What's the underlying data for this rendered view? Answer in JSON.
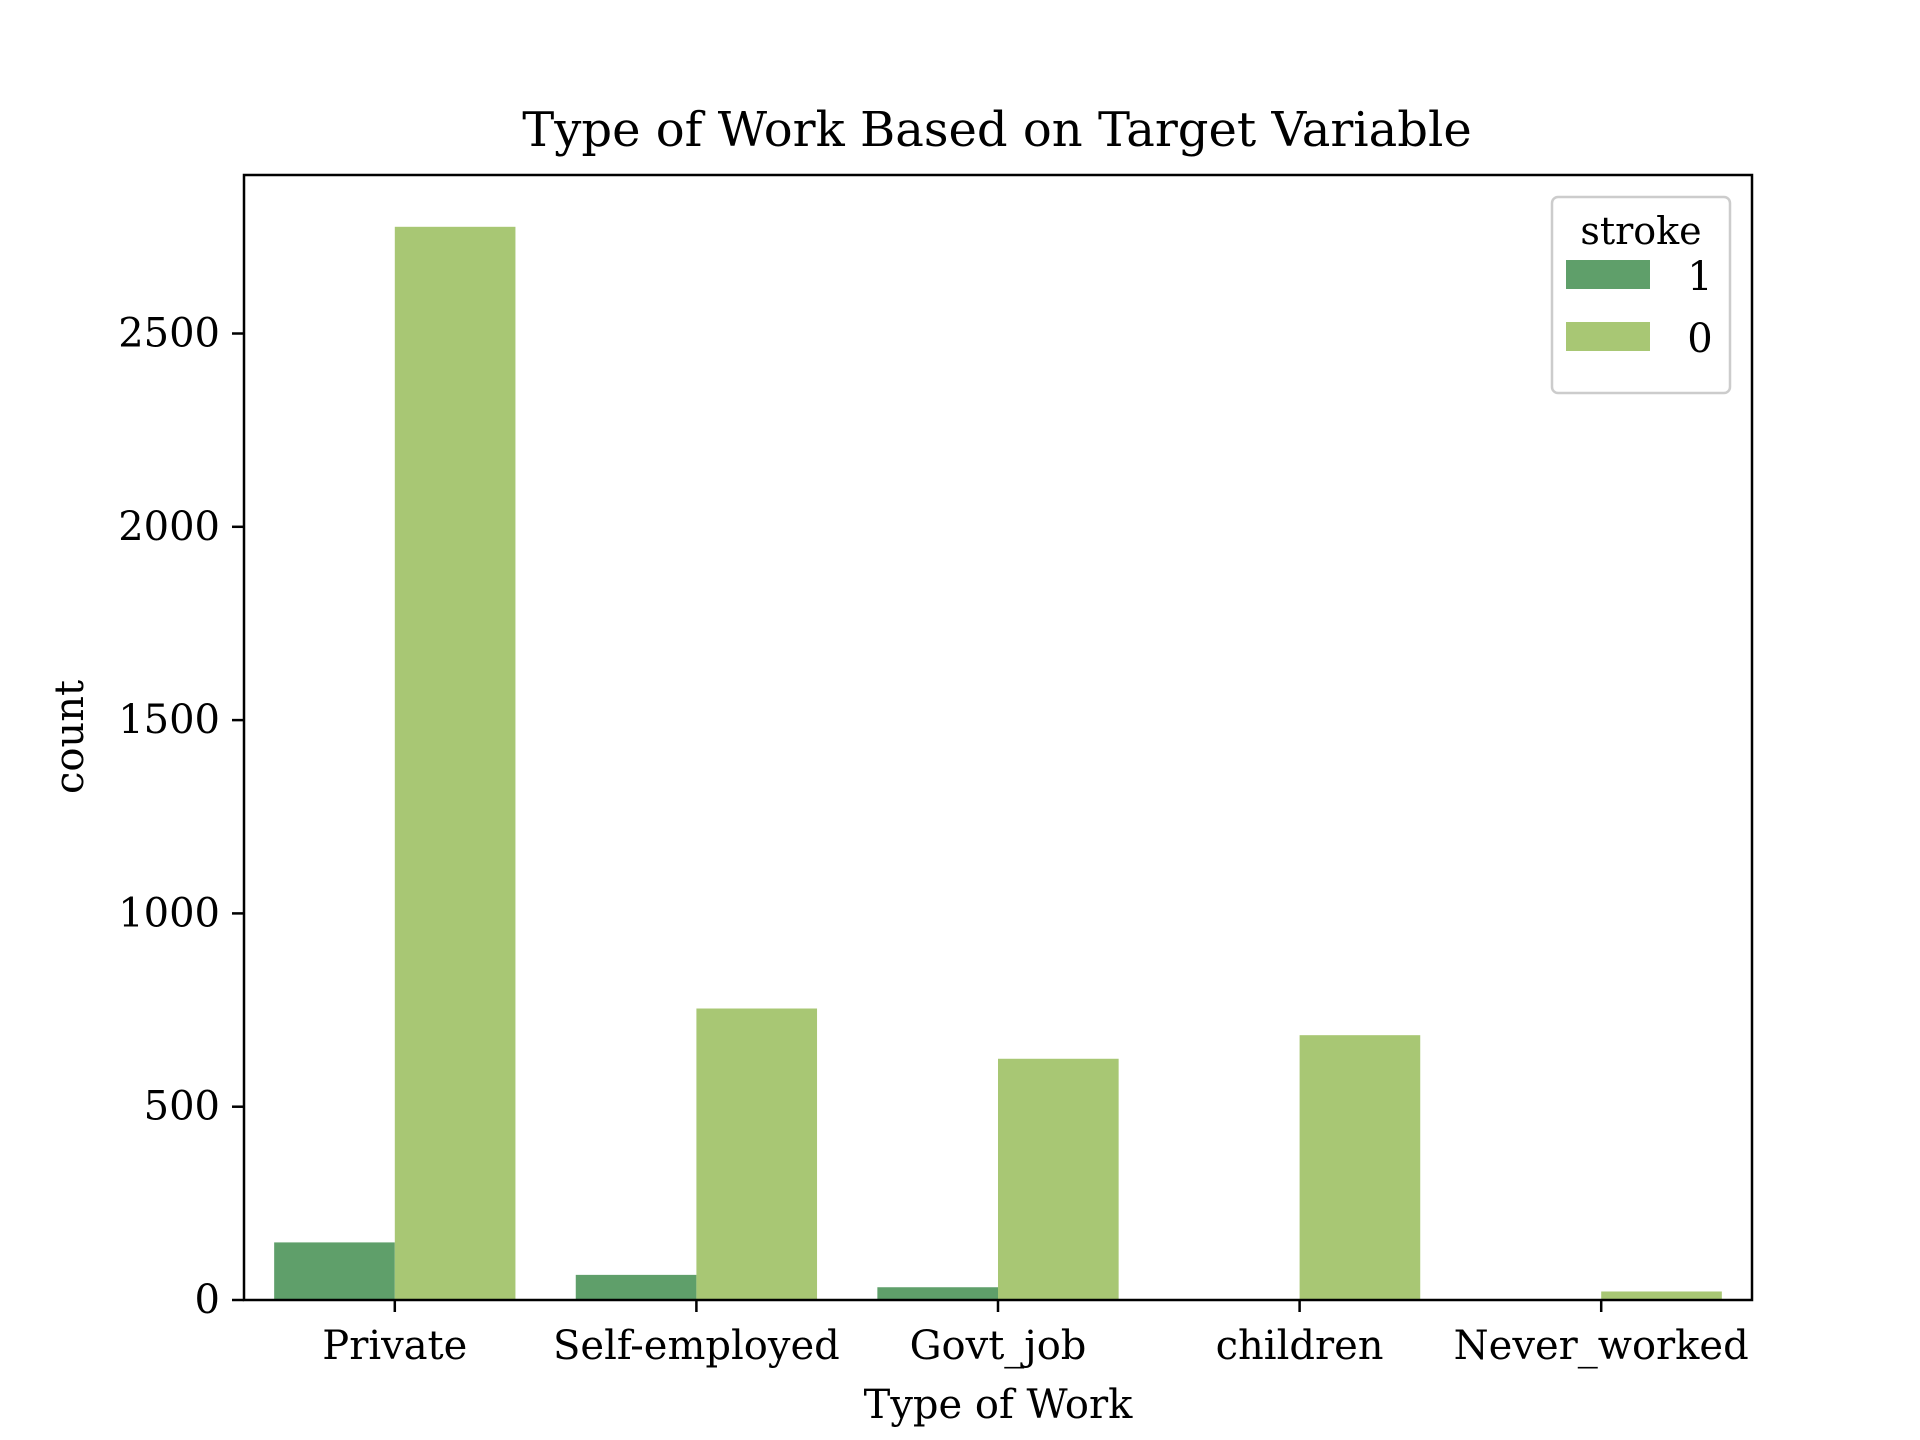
{
  "chart_data": {
    "type": "bar",
    "title": "Type of Work Based on Target Variable",
    "xlabel": "Type of Work",
    "ylabel": "count",
    "categories": [
      "Private",
      "Self-employed",
      "Govt_job",
      "children",
      "Never_worked"
    ],
    "series": [
      {
        "name": "1",
        "color": "#5f9f6a",
        "values": [
          149,
          65,
          33,
          2,
          0
        ]
      },
      {
        "name": "0",
        "color": "#a8c774",
        "values": [
          2776,
          754,
          624,
          685,
          22
        ]
      }
    ],
    "ylim": [
      0,
      2910
    ],
    "yticks": [
      0,
      500,
      1000,
      1500,
      2000,
      2500
    ],
    "legend": {
      "title": "stroke",
      "position": "top-right"
    },
    "grid": false
  }
}
